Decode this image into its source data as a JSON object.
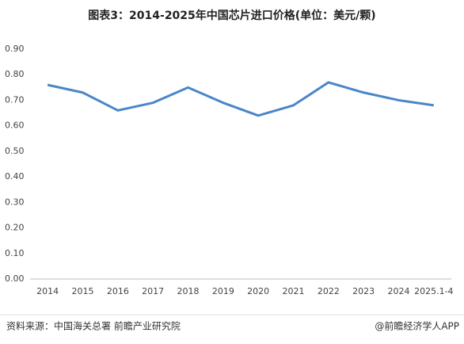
{
  "chart_data": {
    "type": "line",
    "title": "图表3：2014-2025年中国芯片进口价格(单位：美元/颗)",
    "categories": [
      "2014",
      "2015",
      "2016",
      "2017",
      "2018",
      "2019",
      "2020",
      "2021",
      "2022",
      "2023",
      "2024",
      "2025.1-4"
    ],
    "series": [
      {
        "color": "#4a86c8",
        "values": [
          0.76,
          0.73,
          0.66,
          0.69,
          0.75,
          0.69,
          0.64,
          0.68,
          0.77,
          0.73,
          0.7,
          0.68
        ]
      }
    ],
    "ylim": [
      0,
      0.9
    ],
    "yticks": [
      {
        "value": 0,
        "label": "0.00"
      },
      {
        "value": 0.1,
        "label": "0.10"
      },
      {
        "value": 0.2,
        "label": "0.20"
      },
      {
        "value": 0.3,
        "label": "0.30"
      },
      {
        "value": 0.4,
        "label": "0.40"
      },
      {
        "value": 0.5,
        "label": "0.50"
      },
      {
        "value": 0.6,
        "label": "0.60"
      },
      {
        "value": 0.7,
        "label": "0.70"
      },
      {
        "value": 0.8,
        "label": "0.80"
      },
      {
        "value": 0.9,
        "label": "0.90"
      }
    ],
    "grid": false
  },
  "footer": {
    "source": "资料来源：中国海关总署 前瞻产业研究院",
    "brand": "@前瞻经济学人APP"
  }
}
